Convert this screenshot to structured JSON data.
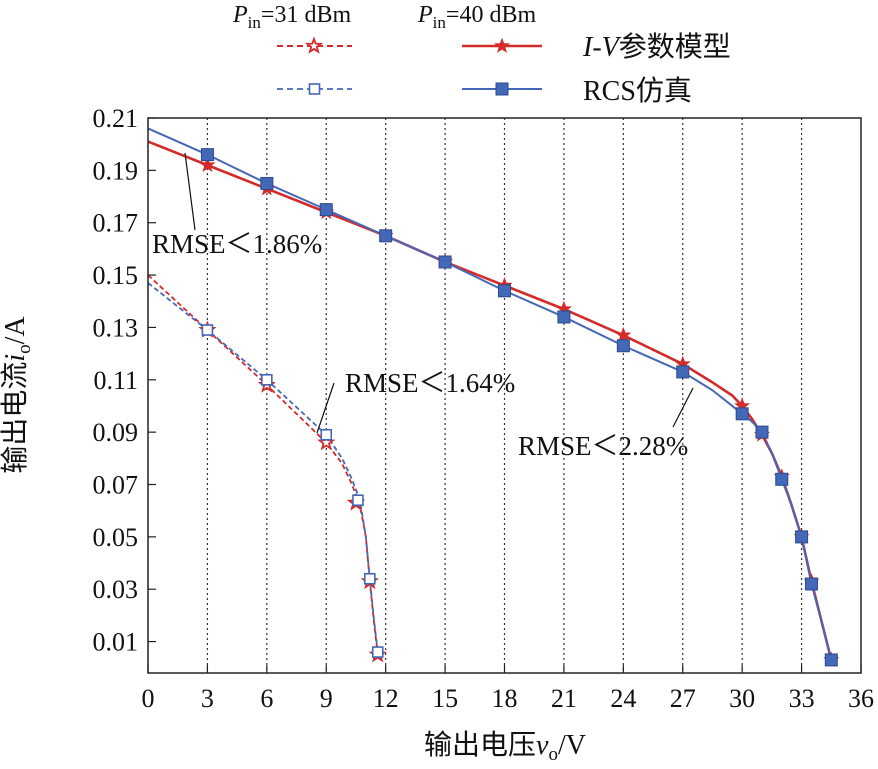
{
  "chart_data": {
    "type": "line",
    "title": "",
    "xlabel": "输出电压v_o/V",
    "ylabel": "输出电流i_o/A",
    "xlabel_parts": {
      "main": "输出电压",
      "var": "v",
      "sub": "o",
      "unit": "/V"
    },
    "ylabel_parts": {
      "main": "输出电流",
      "var": "i",
      "sub": "o",
      "unit": "/A"
    },
    "xlim": [
      0,
      36
    ],
    "ylim": [
      -0.002,
      0.21
    ],
    "x_ticks": [
      0,
      3,
      6,
      9,
      12,
      15,
      18,
      21,
      24,
      27,
      30,
      33,
      36
    ],
    "x_tick_labels": [
      "0",
      "3",
      "6",
      "9",
      "12",
      "15",
      "18",
      "21",
      "24",
      "27",
      "30",
      "33",
      "36"
    ],
    "y_ticks": [
      0.01,
      0.03,
      0.05,
      0.07,
      0.09,
      0.11,
      0.13,
      0.15,
      0.17,
      0.19,
      0.21
    ],
    "y_tick_labels": [
      "0.01",
      "0.03",
      "0.05",
      "0.07",
      "0.09",
      "0.11",
      "0.13",
      "0.15",
      "0.17",
      "0.19",
      "0.21"
    ],
    "grid": {
      "vertical": true,
      "horizontal": false,
      "style": "dotted"
    },
    "legend": {
      "placement": "top",
      "header_31": {
        "var": "P",
        "sub": "in",
        "text": "=31 dBm"
      },
      "header_40": {
        "var": "P",
        "sub": "in",
        "text": "=40 dBm"
      },
      "row_iv": {
        "var": "I-V",
        "text": "参数模型"
      },
      "row_rcs": "RCS仿真"
    },
    "annotations": [
      {
        "text": "RMSE＜1.86%"
      },
      {
        "text": "RMSE＜1.64%"
      },
      {
        "text": "RMSE＜2.28%"
      }
    ],
    "series": [
      {
        "key": "iv40",
        "group": "Pin=40 dBm",
        "kind": "I-V参数模型",
        "color": "#d42a2a",
        "dash": false,
        "marker": "star",
        "filled": true,
        "curve_x": [
          0,
          3,
          6,
          9,
          12,
          15,
          18,
          21,
          24,
          27,
          28.5,
          29.5,
          30,
          30.5,
          31,
          31.5,
          32,
          32.5,
          33,
          33.5,
          34,
          34.5
        ],
        "curve_y": [
          0.201,
          0.192,
          0.183,
          0.174,
          0.165,
          0.155,
          0.146,
          0.137,
          0.127,
          0.116,
          0.109,
          0.104,
          0.1,
          0.095,
          0.089,
          0.082,
          0.073,
          0.062,
          0.05,
          0.033,
          0.018,
          0.003
        ],
        "marker_x": [
          3,
          6,
          9,
          12,
          15,
          18,
          21,
          24,
          27,
          30,
          31,
          32,
          33,
          33.5,
          34.5
        ],
        "marker_y": [
          0.192,
          0.183,
          0.174,
          0.165,
          0.155,
          0.146,
          0.137,
          0.127,
          0.116,
          0.1,
          0.089,
          0.073,
          0.05,
          0.033,
          0.003
        ]
      },
      {
        "key": "rcs40",
        "group": "Pin=40 dBm",
        "kind": "RCS仿真",
        "color": "#4468b8",
        "dash": false,
        "marker": "square",
        "filled": true,
        "curve_x": [
          0,
          3,
          6,
          9,
          12,
          15,
          18,
          21,
          24,
          27,
          28.5,
          29.5,
          30,
          30.5,
          31,
          31.5,
          32,
          32.5,
          33,
          33.5,
          34,
          34.5
        ],
        "curve_y": [
          0.206,
          0.196,
          0.185,
          0.175,
          0.165,
          0.155,
          0.144,
          0.134,
          0.123,
          0.113,
          0.106,
          0.1,
          0.097,
          0.094,
          0.09,
          0.082,
          0.072,
          0.062,
          0.05,
          0.032,
          0.018,
          0.003
        ],
        "marker_x": [
          3,
          6,
          9,
          12,
          15,
          18,
          21,
          24,
          27,
          30,
          31,
          32,
          33,
          33.5,
          34.5
        ],
        "marker_y": [
          0.196,
          0.185,
          0.175,
          0.165,
          0.155,
          0.144,
          0.134,
          0.123,
          0.113,
          0.097,
          0.09,
          0.072,
          0.05,
          0.032,
          0.003
        ]
      },
      {
        "key": "iv31",
        "group": "Pin=31 dBm",
        "kind": "I-V参数模型",
        "color": "#d42a2a",
        "dash": true,
        "marker": "star",
        "filled": false,
        "curve_x": [
          0,
          3,
          6,
          9,
          9.8,
          10.3,
          10.7,
          11,
          11.2,
          11.4,
          11.6
        ],
        "curve_y": [
          0.15,
          0.129,
          0.108,
          0.086,
          0.078,
          0.07,
          0.062,
          0.05,
          0.033,
          0.018,
          0.005
        ],
        "marker_x": [
          3,
          6,
          9,
          10.5,
          11.2,
          11.6
        ],
        "marker_y": [
          0.129,
          0.108,
          0.086,
          0.063,
          0.033,
          0.005
        ]
      },
      {
        "key": "rcs31",
        "group": "Pin=31 dBm",
        "kind": "RCS仿真",
        "color": "#4468b8",
        "dash": true,
        "marker": "square",
        "filled": false,
        "curve_x": [
          0,
          3,
          6,
          9,
          9.8,
          10.3,
          10.7,
          11,
          11.2,
          11.4,
          11.6
        ],
        "curve_y": [
          0.147,
          0.129,
          0.11,
          0.089,
          0.08,
          0.072,
          0.064,
          0.05,
          0.034,
          0.019,
          0.006
        ],
        "marker_x": [
          3,
          6,
          9,
          10.6,
          11.2,
          11.6
        ],
        "marker_y": [
          0.129,
          0.11,
          0.089,
          0.064,
          0.034,
          0.006
        ]
      }
    ]
  }
}
